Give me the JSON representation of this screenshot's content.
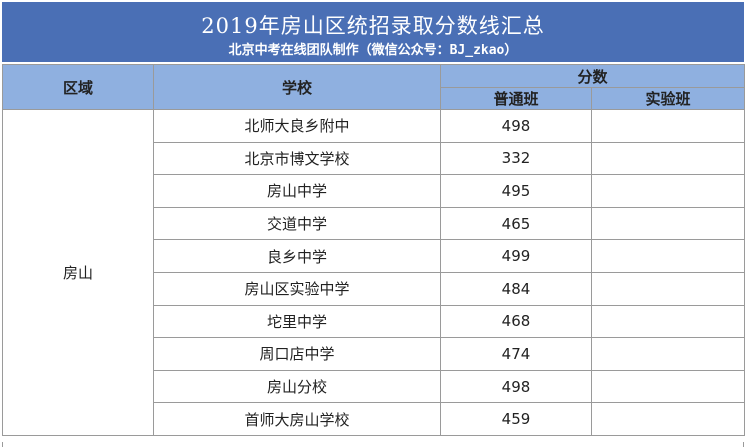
{
  "title": "2019年房山区统招录取分数线汇总",
  "subtitle": "北京中考在线团队制作（微信公众号：BJ_zkao）",
  "headers": {
    "district": "区域",
    "school": "学校",
    "scores": "分数",
    "regular": "普通班",
    "experimental": "实验班"
  },
  "district": "房山",
  "rows": [
    {
      "school": "北师大良乡附中",
      "regular": "498",
      "experimental": ""
    },
    {
      "school": "北京市博文学校",
      "regular": "332",
      "experimental": ""
    },
    {
      "school": "房山中学",
      "regular": "495",
      "experimental": ""
    },
    {
      "school": "交道中学",
      "regular": "465",
      "experimental": ""
    },
    {
      "school": "良乡中学",
      "regular": "499",
      "experimental": ""
    },
    {
      "school": "房山区实验中学",
      "regular": "484",
      "experimental": ""
    },
    {
      "school": "坨里中学",
      "regular": "468",
      "experimental": ""
    },
    {
      "school": "周口店中学",
      "regular": "474",
      "experimental": ""
    },
    {
      "school": "房山分校",
      "regular": "498",
      "experimental": ""
    },
    {
      "school": "首师大房山学校",
      "regular": "459",
      "experimental": ""
    }
  ],
  "colors": {
    "title_band": "#4a6fb5",
    "header_band": "#8fb0e0",
    "grid_line": "#9a9a9a"
  }
}
